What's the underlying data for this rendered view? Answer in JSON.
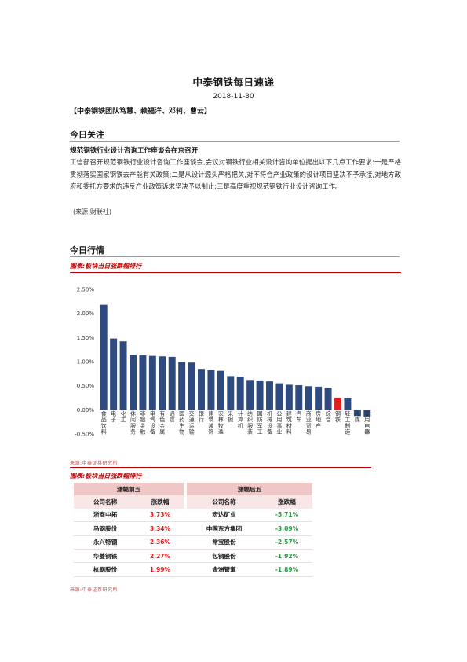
{
  "header": {
    "title": "中泰钢铁每日速递",
    "date": "2018-11-30",
    "team": "【中泰钢铁团队笃慧、赖福洋、邓轲、曹云】"
  },
  "focus": {
    "section_title": "今日关注",
    "headline": "规范钢铁行业设计咨询工作座谈会在京召开",
    "body": "工信部召开规范钢铁行业设计咨询工作座谈会,会议对钢铁行业相关设计咨询单位提出以下几点工作要求:一是严格贯彻落实国家钢铁去产能有关政策;二是从设计源头严格把关,对不符合产业政策的设计项目坚决不予承接,对地方政府和委托方要求的违反产业政策诉求坚决予以制止;三是高度重视规范钢铁行业设计咨询工作。",
    "source": "(来源:财联社)"
  },
  "market": {
    "section_title": "今日行情",
    "figure1_caption": "图表:板块当日涨跌幅排行",
    "figure1_source": "来源:中泰证券研究所",
    "figure2_caption": "图表:板块当日涨跌幅排行",
    "figure2_source": "来源:中泰证券研究所"
  },
  "chart_data": {
    "type": "bar",
    "categories": [
      "食品饮料",
      "电子",
      "化工",
      "休闲服务",
      "非银金融",
      "电气设备",
      "有色金属",
      "通信",
      "医药生物",
      "交通运输",
      "银行",
      "建筑装饰",
      "农林牧渔",
      "采掘",
      "计算机",
      "纺织服装",
      "国防军工",
      "机械设备",
      "公用事业",
      "建筑材料",
      "汽车",
      "商业贸易",
      "房地产",
      "综合",
      "钢铁",
      "轻工制造",
      "传媒",
      "家用电器"
    ],
    "values": [
      2.18,
      1.48,
      1.42,
      1.14,
      1.13,
      1.12,
      1.11,
      1.1,
      0.99,
      0.98,
      0.85,
      0.83,
      0.81,
      0.7,
      0.69,
      0.62,
      0.61,
      0.59,
      0.55,
      0.52,
      0.51,
      0.49,
      0.48,
      0.46,
      0.25,
      0.25,
      -0.13,
      -0.14
    ],
    "highlight": "钢铁",
    "bar_color": "#2e4a7e",
    "highlight_color": "#e02020",
    "ylim": [
      -0.5,
      2.5
    ],
    "yticks": [
      "-0.50%",
      "0.00%",
      "0.50%",
      "1.00%",
      "1.50%",
      "2.00%",
      "2.50%"
    ],
    "grid": false,
    "legend": "none"
  },
  "ranking_table": {
    "top_label": "涨幅前五",
    "bottom_label": "涨幅后五",
    "col_name": "公司名称",
    "col_change": "涨跌幅",
    "top": [
      {
        "name": "浙商中拓",
        "change": "3.73%"
      },
      {
        "name": "马钢股份",
        "change": "3.34%"
      },
      {
        "name": "永兴特钢",
        "change": "2.36%"
      },
      {
        "name": "华菱钢铁",
        "change": "2.27%"
      },
      {
        "name": "杭钢股份",
        "change": "1.99%"
      }
    ],
    "bottom": [
      {
        "name": "宏达矿业",
        "change": "-5.71%"
      },
      {
        "name": "中国东方集团",
        "change": "-3.09%"
      },
      {
        "name": "常宝股份",
        "change": "-2.57%"
      },
      {
        "name": "包钢股份",
        "change": "-1.92%"
      },
      {
        "name": "金洲管道",
        "change": "-1.89%"
      }
    ],
    "positive_color": "#e02020",
    "negative_color": "#22a040"
  }
}
